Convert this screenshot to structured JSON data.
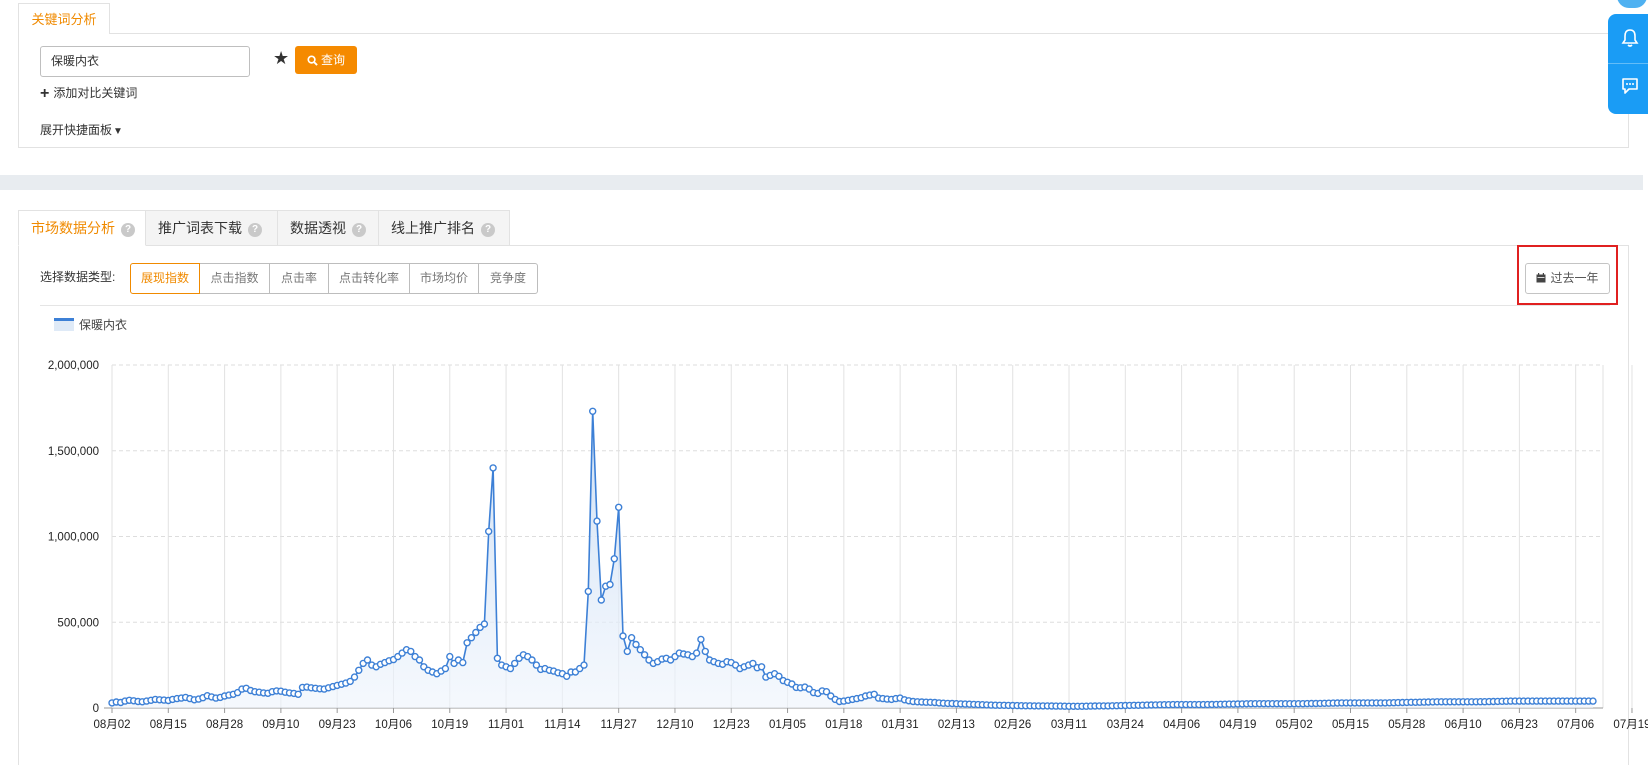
{
  "search": {
    "tab_label": "关键词分析",
    "keyword_value": "保暖内衣",
    "query_label": "查询",
    "add_compare_label": "添加对比关键词",
    "expand_panel_label": "展开快捷面板"
  },
  "tabs": [
    {
      "label": "市场数据分析"
    },
    {
      "label": "推广词表下载"
    },
    {
      "label": "数据透视"
    },
    {
      "label": "线上推广排名"
    }
  ],
  "data_type": {
    "label": "选择数据类型:",
    "options": [
      "展现指数",
      "点击指数",
      "点击率",
      "点击转化率",
      "市场均价",
      "竞争度"
    ],
    "selected": "展现指数"
  },
  "date_range_label": "过去一年",
  "colors": {
    "accent": "#f08a00",
    "line": "#3d80d6",
    "highlight": "#e02020"
  },
  "chart_data": {
    "type": "line",
    "series": [
      {
        "name": "保暖内衣"
      }
    ],
    "x_tick_labels": [
      "08月02",
      "08月15",
      "08月28",
      "09月10",
      "09月23",
      "10月06",
      "10月19",
      "11月01",
      "11月14",
      "11月27",
      "12月10",
      "12月23",
      "01月05",
      "01月18",
      "01月31",
      "02月13",
      "02月26",
      "03月11",
      "03月24",
      "04月06",
      "04月19",
      "05月02",
      "05月15",
      "05月28",
      "06月10",
      "06月23",
      "07月06",
      "07月19"
    ],
    "y_tick_labels": [
      "2,000,000",
      "1,500,000",
      "1,000,000",
      "500,000",
      "0"
    ],
    "ylim": [
      0,
      2000000
    ],
    "grid": true,
    "start": "08月02",
    "values": [
      30000,
      35000,
      32000,
      40000,
      45000,
      42000,
      38000,
      36000,
      40000,
      45000,
      50000,
      48000,
      46000,
      44000,
      50000,
      55000,
      58000,
      62000,
      55000,
      48000,
      52000,
      60000,
      72000,
      65000,
      58000,
      62000,
      70000,
      75000,
      80000,
      90000,
      110000,
      115000,
      102000,
      95000,
      92000,
      88000,
      86000,
      95000,
      100000,
      98000,
      92000,
      88000,
      85000,
      80000,
      120000,
      122000,
      118000,
      115000,
      112000,
      110000,
      118000,
      125000,
      132000,
      138000,
      145000,
      155000,
      180000,
      220000,
      260000,
      280000,
      250000,
      240000,
      255000,
      265000,
      275000,
      282000,
      300000,
      320000,
      340000,
      330000,
      300000,
      280000,
      240000,
      220000,
      210000,
      200000,
      215000,
      230000,
      300000,
      260000,
      280000,
      265000,
      380000,
      410000,
      440000,
      470000,
      490000,
      1030000,
      1400000,
      290000,
      250000,
      240000,
      230000,
      260000,
      290000,
      310000,
      300000,
      280000,
      250000,
      225000,
      230000,
      220000,
      215000,
      205000,
      200000,
      185000,
      210000,
      210000,
      230000,
      250000,
      680000,
      1730000,
      1090000,
      630000,
      710000,
      720000,
      870000,
      1170000,
      420000,
      330000,
      410000,
      370000,
      340000,
      310000,
      280000,
      260000,
      270000,
      285000,
      290000,
      280000,
      300000,
      320000,
      315000,
      310000,
      300000,
      320000,
      400000,
      330000,
      280000,
      270000,
      260000,
      255000,
      270000,
      265000,
      250000,
      230000,
      240000,
      250000,
      260000,
      235000,
      240000,
      180000,
      190000,
      200000,
      185000,
      160000,
      150000,
      140000,
      120000,
      118000,
      122000,
      110000,
      90000,
      85000,
      100000,
      95000,
      70000,
      50000,
      38000,
      40000,
      45000,
      50000,
      55000,
      60000,
      70000,
      75000,
      80000,
      58000,
      55000,
      52000,
      50000,
      55000,
      58000,
      48000,
      42000,
      38000,
      36000,
      35000,
      34000,
      33000,
      32000,
      30000,
      28000,
      27000,
      26000,
      25000,
      24000,
      23000,
      22000,
      21000,
      20000,
      19000,
      18000,
      17000,
      16500,
      16000,
      15500,
      15000,
      14500,
      14000,
      13500,
      13000,
      13000,
      12500,
      12000,
      12000,
      12000,
      11500,
      11000,
      11000,
      10500,
      10000,
      10000,
      10000,
      10000,
      10500,
      11000,
      11500,
      12000,
      12000,
      12500,
      13000,
      13500,
      14000,
      14500,
      15000,
      15500,
      16000,
      16500,
      17000,
      17500,
      18000,
      18500,
      19000,
      19500,
      20000,
      20000,
      20000,
      20000,
      20000,
      20000,
      20000,
      20000,
      20000,
      20500,
      21000,
      21500,
      22000,
      22500,
      23000,
      23500,
      24000,
      24500,
      25000,
      25000,
      25000,
      25000,
      25000,
      25000,
      25000,
      25000,
      25000,
      25000,
      25000,
      25000,
      25000,
      25500,
      26000,
      26500,
      27000,
      27500,
      28000,
      28500,
      29000,
      29500,
      30000,
      30000,
      30000,
      30000,
      30000,
      30000,
      30000,
      30000,
      30000,
      30000,
      30500,
      31000,
      31500,
      32000,
      32500,
      33000,
      33500,
      34000,
      34500,
      35000,
      35500,
      36000,
      36000,
      36000,
      36000,
      36000,
      36000,
      36000,
      36000,
      36000,
      36000,
      36500,
      37000,
      37500,
      38000,
      38500,
      39000,
      39500,
      40000,
      40000,
      40000,
      40000,
      40000,
      40000,
      40000,
      40000,
      40000,
      40000,
      40000,
      40000,
      40000,
      40000,
      40000,
      40000,
      40000,
      40000,
      40000,
      40000
    ]
  }
}
